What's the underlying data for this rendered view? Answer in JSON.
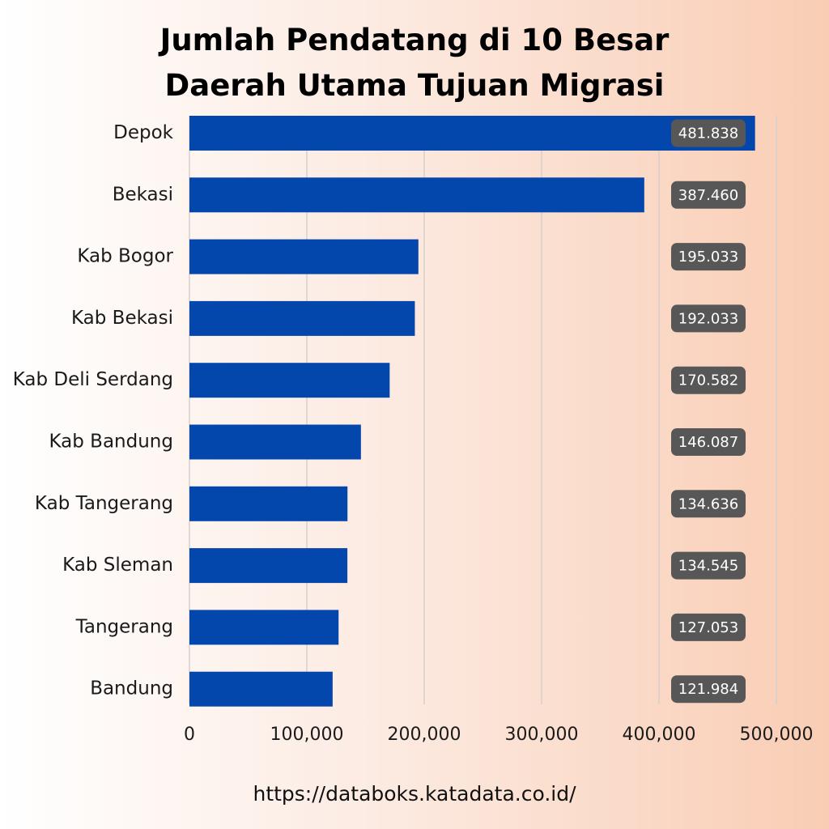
{
  "title_line1": "Jumlah Pendatang di 10 Besar",
  "title_line2": "Daerah Utama Tujuan Migrasi",
  "source": "https://databoks.katadata.co.id/",
  "colors": {
    "bar": "#0447ac",
    "label_box": "#575757",
    "grid": "#d6d0cc"
  },
  "chart_data": {
    "type": "bar",
    "orientation": "horizontal",
    "categories": [
      "Depok",
      "Bekasi",
      "Kab Bogor",
      "Kab Bekasi",
      "Kab Deli Serdang",
      "Kab Bandung",
      "Kab Tangerang",
      "Kab Sleman",
      "Tangerang",
      "Bandung"
    ],
    "values": [
      481838,
      387460,
      195033,
      192033,
      170582,
      146087,
      134636,
      134545,
      127053,
      121984
    ],
    "value_labels": [
      "481.838",
      "387.460",
      "195.033",
      "192.033",
      "170.582",
      "146.087",
      "134.636",
      "134.545",
      "127.053",
      "121.984"
    ],
    "xlim": [
      0,
      500000
    ],
    "x_ticks": [
      0,
      100000,
      200000,
      300000,
      400000,
      500000
    ],
    "x_tick_labels": [
      "0",
      "100,000",
      "200,000",
      "300,000",
      "400,000",
      "500,000"
    ],
    "grid": true,
    "legend": false
  }
}
